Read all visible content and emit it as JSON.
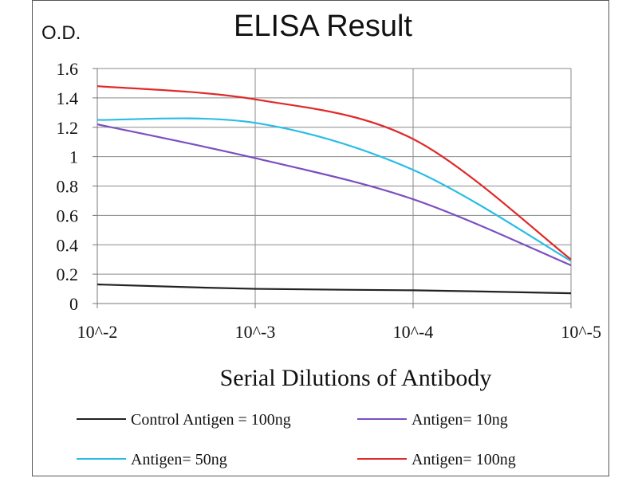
{
  "chart_data": {
    "type": "line",
    "title": "ELISA Result",
    "ylabel": "O.D.",
    "xlabel": "Serial Dilutions  of Antibody",
    "categories": [
      "10^-2",
      "10^-3",
      "10^-4",
      "10^-5"
    ],
    "yticks": [
      "0",
      "0.2",
      "0.4",
      "0.6",
      "0.8",
      "1",
      "1.2",
      "1.4",
      "1.6"
    ],
    "ylim": [
      0,
      1.6
    ],
    "grid": true,
    "legend_position": "bottom",
    "series": [
      {
        "name": "Control Antigen = 100ng",
        "color": "#222222",
        "values": [
          0.13,
          0.1,
          0.09,
          0.07
        ]
      },
      {
        "name": "Antigen= 10ng",
        "color": "#7b4fc0",
        "values": [
          1.22,
          0.99,
          0.71,
          0.26
        ]
      },
      {
        "name": "Antigen= 50ng",
        "color": "#29bde6",
        "values": [
          1.25,
          1.23,
          0.91,
          0.29
        ]
      },
      {
        "name": "Antigen= 100ng",
        "color": "#e02a2a",
        "values": [
          1.48,
          1.39,
          1.12,
          0.3
        ]
      }
    ]
  }
}
